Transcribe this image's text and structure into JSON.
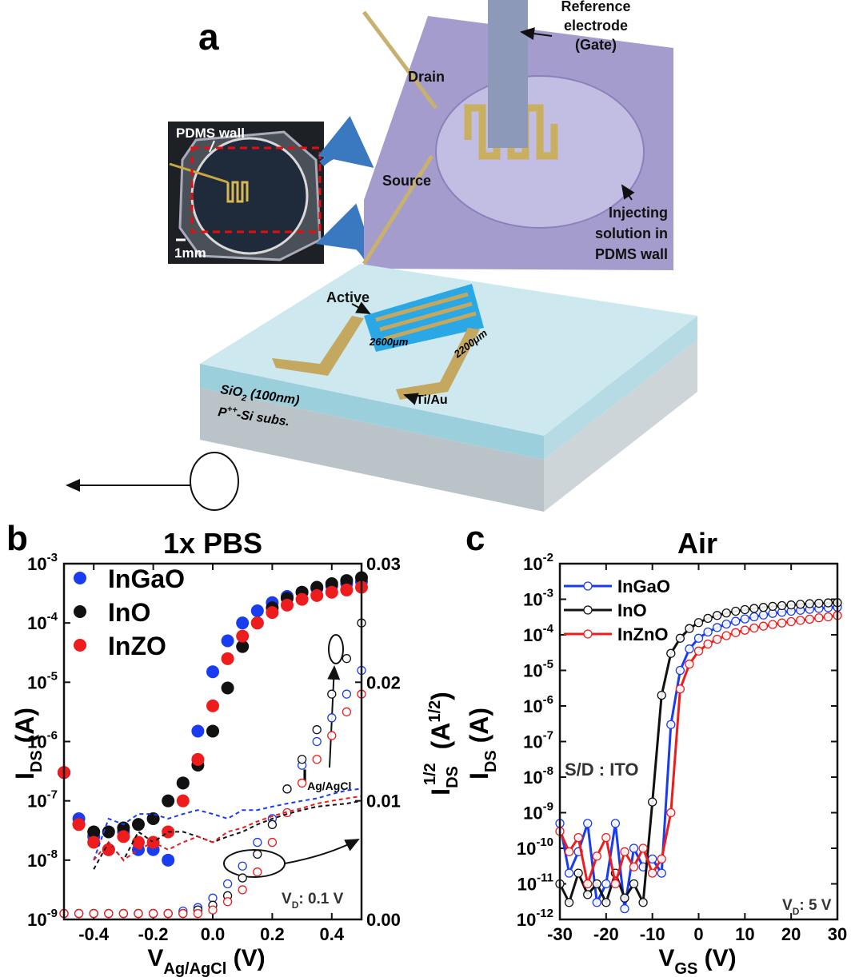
{
  "panel_a": {
    "letter": "a",
    "reference_electrode": [
      "Reference",
      "electrode",
      "(Gate)"
    ],
    "drain": "Drain",
    "source": "Source",
    "injecting": [
      "Injecting",
      "solution in",
      "PDMS wall"
    ],
    "pdms_wall": "PDMS wall",
    "scale": "1mm",
    "active": "Active",
    "length": "2600μm",
    "width": "2200μm",
    "contact": "Ti/Au",
    "oxide": [
      "SiO",
      "2",
      " (100nm)"
    ],
    "substrate": [
      "P",
      "++",
      "-Si subs."
    ]
  },
  "chart_data": [
    {
      "type": "scatter",
      "letter": "b",
      "title": "1x PBS",
      "xlabel": [
        "V",
        "Ag/AgCl",
        " (V)"
      ],
      "ylabel": [
        "I",
        "DS",
        " (A)"
      ],
      "y2label": [
        "I",
        "DS",
        "1/2",
        " (A",
        "1/2",
        ")"
      ],
      "annotations": {
        "gate": [
          "I",
          "Ag/AgCl"
        ],
        "bias": [
          "V",
          "D",
          ": 0.1 V"
        ]
      },
      "ylog": true,
      "legend": "upper left",
      "xlim": [
        -0.5,
        0.5
      ],
      "xticks": [
        -0.4,
        -0.2,
        {
          "value": 0,
          "label": "0.0"
        },
        0.2,
        0.4
      ],
      "ylim": [
        1e-09,
        0.001
      ],
      "yticks": [
        {
          "value": 1e-09,
          "label": "10-9"
        },
        {
          "value": 1e-08,
          "label": "10-8"
        },
        {
          "value": 1e-07,
          "label": "10-7"
        },
        {
          "value": 1e-06,
          "label": "10-6"
        },
        {
          "value": 1e-05,
          "label": "10-5"
        },
        {
          "value": 0.0001,
          "label": "10-4"
        },
        {
          "value": 0.001,
          "label": "10-3"
        }
      ],
      "y2lim": [
        0,
        0.03
      ],
      "y2ticks": [
        {
          "value": 0,
          "label": "0.00"
        },
        0.01,
        0.02,
        0.03
      ],
      "x": [
        -0.5,
        -0.45,
        -0.4,
        -0.35,
        -0.3,
        -0.25,
        -0.2,
        -0.15,
        -0.1,
        -0.05,
        0,
        0.05,
        0.1,
        0.15,
        0.2,
        0.25,
        0.3,
        0.35,
        0.4,
        0.45,
        0.5
      ],
      "series": [
        {
          "name": "InGaO",
          "color": "#1a3cf0",
          "style": "filled",
          "values": [
            3e-07,
            5e-08,
            2.5e-08,
            1.5e-08,
            3e-08,
            1.5e-08,
            1.5e-08,
            1e-08,
            2e-07,
            1.5e-06,
            1.5e-05,
            5e-05,
            0.0001,
            0.00016,
            0.00022,
            0.00028,
            0.00033,
            0.00038,
            0.00042,
            0.00046,
            0.0005
          ]
        },
        {
          "name": "InO",
          "color": "#111111",
          "style": "filled",
          "values": [
            3e-07,
            4e-08,
            3e-08,
            3e-08,
            3.5e-08,
            4e-08,
            5e-08,
            1e-07,
            2e-07,
            4e-07,
            1.5e-06,
            8e-06,
            4e-05,
            0.0001,
            0.00018,
            0.00026,
            0.00033,
            0.0004,
            0.00046,
            0.00052,
            0.00058
          ]
        },
        {
          "name": "InZO",
          "color": "#ee1c1c",
          "style": "filled",
          "values": [
            3e-07,
            4e-08,
            2e-08,
            1.5e-08,
            2.5e-08,
            2e-08,
            2e-08,
            3e-08,
            1e-07,
            5e-07,
            4e-06,
            2.5e-05,
            6e-05,
            0.0001,
            0.00015,
            0.0002,
            0.00025,
            0.00029,
            0.00033,
            0.00036,
            0.0004
          ]
        },
        {
          "color": "#1a3cf0",
          "style": "open",
          "axis": "y2",
          "values": [
            0.0005,
            0.0005,
            0.0005,
            0.0005,
            0.0005,
            0.0005,
            0.0005,
            0.0005,
            0.0007,
            0.001,
            0.0018,
            0.003,
            0.0045,
            0.0065,
            0.0085,
            0.011,
            0.013,
            0.015,
            0.017,
            0.019,
            0.021
          ]
        },
        {
          "color": "#111111",
          "style": "open",
          "axis": "y2",
          "values": [
            0.0005,
            0.0005,
            0.0005,
            0.0005,
            0.0005,
            0.0005,
            0.0005,
            0.0005,
            0.0005,
            0.0008,
            0.0012,
            0.002,
            0.0035,
            0.0055,
            0.008,
            0.011,
            0.0135,
            0.016,
            0.019,
            0.022,
            0.025
          ]
        },
        {
          "color": "#ee1c1c",
          "style": "open",
          "axis": "y2",
          "values": [
            0.0005,
            0.0005,
            0.0005,
            0.0005,
            0.0005,
            0.0005,
            0.0005,
            0.0005,
            0.0005,
            0.0005,
            0.0008,
            0.0015,
            0.0025,
            0.004,
            0.0065,
            0.009,
            0.0115,
            0.0135,
            0.0155,
            0.0175,
            0.019
          ]
        },
        {
          "color": "#1a3cf0",
          "style": "dashed",
          "values": [
            null,
            null,
            1e-08,
            5e-08,
            4e-08,
            6e-08,
            6e-08,
            5e-08,
            6e-08,
            7e-08,
            6e-08,
            5e-08,
            7e-08,
            7e-08,
            8e-08,
            9e-08,
            1e-07,
            1.1e-07,
            1.3e-07,
            1.5e-07,
            1.6e-07
          ]
        },
        {
          "color": "#111111",
          "style": "dashed",
          "values": [
            null,
            null,
            7e-09,
            2e-08,
            1e-08,
            3e-08,
            2e-08,
            3e-08,
            3e-08,
            2.5e-08,
            2e-08,
            2.5e-08,
            3e-08,
            4e-08,
            5e-08,
            6e-08,
            7e-08,
            8e-08,
            8.5e-08,
            9e-08,
            1e-07
          ]
        },
        {
          "color": "#ee1c1c",
          "style": "dashed",
          "values": [
            null,
            null,
            1e-08,
            2e-08,
            1e-08,
            1.5e-08,
            2e-08,
            1.5e-08,
            2e-08,
            2.5e-08,
            2e-08,
            3e-08,
            3.5e-08,
            4.5e-08,
            5.5e-08,
            6.5e-08,
            7.5e-08,
            9e-08,
            1e-07,
            1.1e-07,
            1.2e-07
          ]
        }
      ]
    },
    {
      "type": "line",
      "letter": "c",
      "title": "Air",
      "xlabel": [
        "V",
        "GS",
        " (V)"
      ],
      "ylabel": [
        "I",
        "DS",
        " (A)"
      ],
      "annotations": {
        "contacts": "S/D : ITO",
        "bias": [
          "V",
          "D",
          ": 5 V"
        ]
      },
      "ylog": true,
      "legend": "upper left",
      "xlim": [
        -30,
        30
      ],
      "xticks": [
        -30,
        -20,
        -10,
        0,
        10,
        20,
        30
      ],
      "ylim": [
        1e-12,
        0.01
      ],
      "yticks": [
        {
          "value": 1e-12,
          "label": "10-12"
        },
        {
          "value": 1e-11,
          "label": "10-11"
        },
        {
          "value": 1e-10,
          "label": "10-10"
        },
        {
          "value": 1e-09,
          "label": "10-9"
        },
        {
          "value": 1e-08,
          "label": "10-8"
        },
        {
          "value": 1e-07,
          "label": "10-7"
        },
        {
          "value": 1e-06,
          "label": "10-6"
        },
        {
          "value": 1e-05,
          "label": "10-5"
        },
        {
          "value": 0.0001,
          "label": "10-4"
        },
        {
          "value": 0.001,
          "label": "10-3"
        },
        {
          "value": 0.01,
          "label": "10-2"
        }
      ],
      "x": [
        -30,
        -28,
        -26,
        -24,
        -22,
        -20,
        -18,
        -16,
        -14,
        -12,
        -10,
        -8,
        -6,
        -4,
        -2,
        0,
        2,
        4,
        6,
        8,
        10,
        12,
        14,
        16,
        18,
        20,
        22,
        24,
        26,
        28,
        30
      ],
      "series": [
        {
          "name": "InGaO",
          "color": "#1a3cf0",
          "style": "line-open",
          "values": [
            5e-10,
            2e-11,
            8e-11,
            5e-10,
            3e-12,
            1e-11,
            5e-10,
            2e-12,
            1e-10,
            3e-11,
            5e-11,
            2e-11,
            3e-07,
            1e-05,
            4e-05,
            8e-05,
            0.00012,
            0.00016,
            0.0002,
            0.00024,
            0.00028,
            0.00032,
            0.00036,
            0.0004,
            0.00043,
            0.00046,
            0.00049,
            0.00052,
            0.00055,
            0.00058,
            0.0006
          ]
        },
        {
          "name": "InO",
          "color": "#111111",
          "style": "line-open",
          "values": [
            1e-11,
            3e-12,
            2e-11,
            5e-12,
            1e-11,
            3e-12,
            2e-11,
            4e-12,
            1e-11,
            3e-12,
            2e-09,
            2e-06,
            3e-05,
            8e-05,
            0.00015,
            0.00022,
            0.00029,
            0.00035,
            0.00041,
            0.00046,
            0.00051,
            0.00055,
            0.00059,
            0.00063,
            0.00066,
            0.00069,
            0.00072,
            0.00075,
            0.00077,
            0.00079,
            0.0008
          ]
        },
        {
          "name": "InZnO",
          "color": "#ee1c1c",
          "style": "line-open",
          "values": [
            3e-10,
            8e-11,
            2e-10,
            1e-11,
            6e-11,
            2e-10,
            1e-11,
            8e-11,
            3e-11,
            1e-10,
            2e-11,
            5e-11,
            1e-09,
            3e-06,
            1.5e-05,
            3.5e-05,
            5.5e-05,
            7.5e-05,
            9.5e-05,
            0.000115,
            0.000135,
            0.000155,
            0.000175,
            0.000195,
            0.000215,
            0.000235,
            0.000255,
            0.000275,
            0.0003,
            0.00032,
            0.00035
          ]
        }
      ]
    }
  ]
}
